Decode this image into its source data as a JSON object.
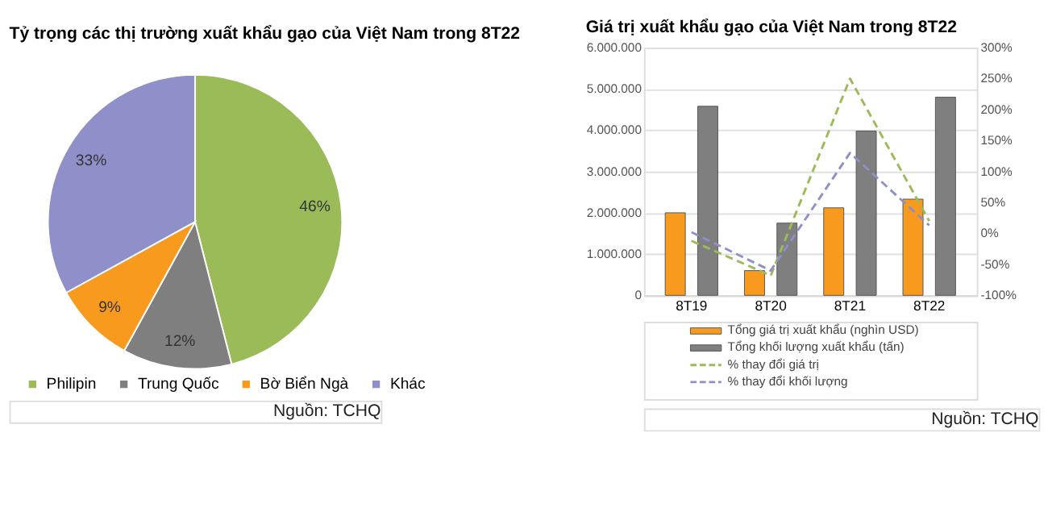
{
  "chart_data": [
    {
      "type": "pie",
      "title": "Tỷ trọng các thị trường xuất khẩu gạo của Việt Nam trong 8T22",
      "categories": [
        "Philipin",
        "Trung Quốc",
        "Bờ Biển Ngà",
        "Khác"
      ],
      "values": [
        46,
        12,
        9,
        33
      ],
      "value_labels": [
        "46%",
        "12%",
        "9%",
        "33%"
      ],
      "colors": [
        "#9bbb59",
        "#7f7f7f",
        "#f79a1e",
        "#8f8fc9"
      ],
      "legend": "bottom",
      "annotations": [
        "Nguồn: TCHQ"
      ]
    },
    {
      "type": "bar",
      "title": "Giá trị xuất khẩu gạo của Việt Nam trong 8T22",
      "categories": [
        "8T19",
        "8T20",
        "8T21",
        "8T22"
      ],
      "series": [
        {
          "name": "Tổng giá trị xuất khẩu (nghìn USD)",
          "type": "bar",
          "color": "#f79a1e",
          "values": [
            2000000,
            600000,
            2120000,
            2330000
          ]
        },
        {
          "name": "Tổng khối lượng xuất khẩu (tấn)",
          "type": "bar",
          "color": "#7f7f7f",
          "values": [
            4580000,
            1750000,
            3980000,
            4800000
          ]
        },
        {
          "name": "% thay đổi giá trị",
          "type": "line",
          "axis": "y2",
          "line_style": "dashed",
          "color": "#9bbb59",
          "values": [
            -12,
            -68,
            250,
            20
          ]
        },
        {
          "name": "% thay đổi khối lượng",
          "type": "line",
          "axis": "y2",
          "line_style": "dashed",
          "color": "#8f8fc9",
          "values": [
            2,
            -60,
            130,
            13
          ]
        }
      ],
      "ylim": [
        0,
        6000000
      ],
      "yticks": [
        {
          "value": 0,
          "label": "0"
        },
        {
          "value": 1000000,
          "label": "1.000.000"
        },
        {
          "value": 2000000,
          "label": "2.000.000"
        },
        {
          "value": 3000000,
          "label": "3.000.000"
        },
        {
          "value": 4000000,
          "label": "4.000.000"
        },
        {
          "value": 5000000,
          "label": "5.000.000"
        },
        {
          "value": 6000000,
          "label": "6.000.000"
        }
      ],
      "y2lim": [
        -100,
        300
      ],
      "y2ticks": [
        {
          "value": -100,
          "label": "-100%"
        },
        {
          "value": -50,
          "label": "-50%"
        },
        {
          "value": 0,
          "label": "0%"
        },
        {
          "value": 50,
          "label": "50%"
        },
        {
          "value": 100,
          "label": "100%"
        },
        {
          "value": 150,
          "label": "150%"
        },
        {
          "value": 200,
          "label": "200%"
        },
        {
          "value": 250,
          "label": "250%"
        },
        {
          "value": 300,
          "label": "300%"
        }
      ],
      "grid": "y",
      "legend": "bottom",
      "annotations": [
        "Nguồn: TCHQ"
      ]
    }
  ]
}
